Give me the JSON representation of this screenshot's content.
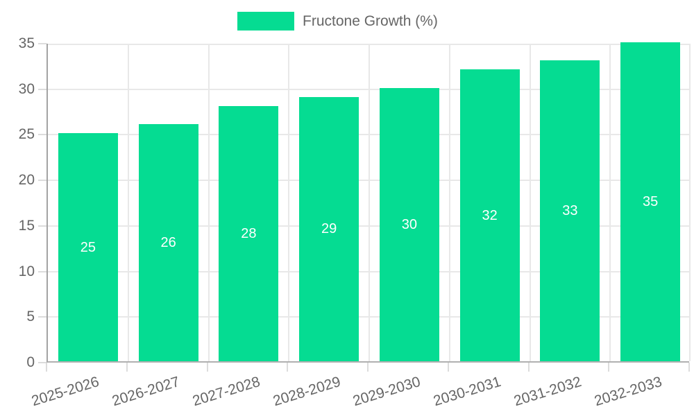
{
  "legend": {
    "label": "Fructone Growth (%)"
  },
  "colors": {
    "bar": "#05dc92",
    "grid": "#e8e8e8",
    "tick": "#dcdcdc",
    "axis_y": "#a3a3a3",
    "axis_x": "#b0b0b0",
    "text": "#666666",
    "value_label": "#ffffff",
    "background": "#ffffff"
  },
  "chart_data": {
    "type": "bar",
    "title": "",
    "xlabel": "",
    "ylabel": "",
    "categories": [
      "2025-2026",
      "2026-2027",
      "2027-2028",
      "2028-2029",
      "2029-2030",
      "2030-2031",
      "2031-2032",
      "2032-2033"
    ],
    "series": [
      {
        "name": "Fructone Growth (%)",
        "values": [
          25,
          26,
          28,
          29,
          30,
          32,
          33,
          35
        ]
      }
    ],
    "ylim": [
      0,
      35
    ],
    "yticks": [
      0,
      5,
      10,
      15,
      20,
      25,
      30,
      35
    ],
    "grid": true,
    "legend_position": "top",
    "value_labels": "inside-center",
    "x_tick_rotation_deg": -17
  }
}
